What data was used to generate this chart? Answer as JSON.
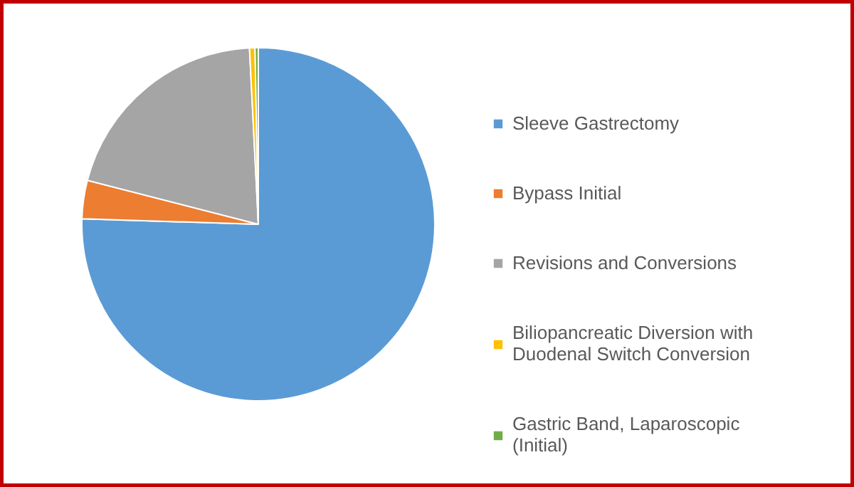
{
  "chart_data": {
    "type": "pie",
    "legend": "right",
    "categories": [
      "Sleeve Gastrectomy",
      "Bypass Initial",
      "Revisions and Conversions",
      "Biliopancreatic Diversion with Duodenal Switch Conversion",
      "Gastric Band, Laparoscopic (Initial)"
    ],
    "values": [
      75.5,
      3.5,
      20.2,
      0.5,
      0.3
    ],
    "colors": [
      "#5b9bd5",
      "#ed7d31",
      "#a5a5a5",
      "#ffc000",
      "#70ad47"
    ]
  }
}
